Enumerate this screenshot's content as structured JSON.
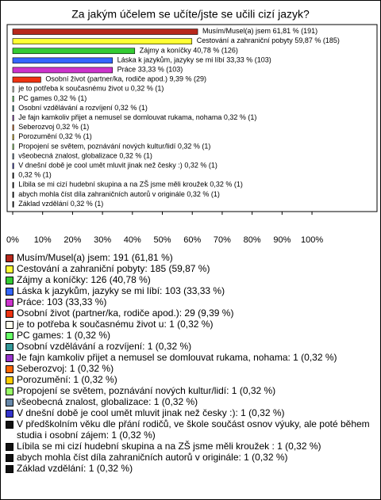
{
  "chart_data": {
    "type": "bar",
    "orientation": "horizontal",
    "title": "Za jakým účelem se učíte/jste se učili cizí jazyk?",
    "categories": [
      "Musím/Musel(a) jsem",
      "Cestování a zahraniční pobyty",
      "Zájmy a koníčky",
      "Láska k jazykům, jazyky se mi líbí",
      "Práce",
      "Osobní život (partner/ka, rodiče apod.)",
      "je to potřeba k současnému život u",
      "PC games",
      "Osobní vzdělávání a rozvíjení",
      "Je fajn kamkoliv přijet a nemusel se domlouvat rukama, nohama",
      "Seberozvoj",
      "Porozumění",
      "Propojení se světem, poznávání nových kultur/lidí",
      "všeobecná znalost, globalizace",
      "V dnešní době je cool umět mluvit jinak než česky :)",
      null,
      "Líbila se mi cizí hudební skupina a na ZŠ jsme měli kroužek",
      "abych mohla číst díla zahraničních autorů v originále",
      "Základ vzdělání"
    ],
    "values": [
      61.81,
      59.87,
      40.78,
      33.33,
      33.33,
      9.39,
      0.32,
      0.32,
      0.32,
      0.32,
      0.32,
      0.32,
      0.32,
      0.32,
      0.32,
      0.32,
      0.32,
      0.32,
      0.32
    ],
    "value_labels": [
      "61,81 % (191)",
      "59,87 % (185)",
      "40,78 % (126)",
      "33,33 % (103)",
      "33,33 % (103)",
      "9,39 % (29)",
      "0,32 % (1)",
      "0,32 % (1)",
      "0,32 % (1)",
      "0,32 % (1)",
      "0,32 % (1)",
      "0,32 % (1)",
      "0,32 % (1)",
      "0,32 % (1)",
      "0,32 % (1)",
      "0,32 % (1)",
      "0,32 % (1)",
      "0,32 % (1)",
      "0,32 % (1)"
    ],
    "colors": [
      "#b8281c",
      "#ffff33",
      "#33cc33",
      "#3366ff",
      "#cc33cc",
      "#ee3311",
      "#ffffee",
      "#66ff66",
      "#339999",
      "#9933cc",
      "#ff6600",
      "#ffcc00",
      "#99ff66",
      "#6688aa",
      "#3333cc",
      "#111111",
      "#111111",
      "#111111",
      "#111111"
    ],
    "legend": [
      "Musím/Musel(a) jsem: 191 (61,81 %)",
      "Cestování a zahraniční pobyty: 185 (59,87 %)",
      "Zájmy a koníčky: 126 (40,78 %)",
      "Láska k jazykům, jazyky se mi líbí: 103 (33,33 %)",
      "Práce: 103 (33,33 %)",
      "Osobní život (partner/ka, rodiče apod.): 29 (9,39 %)",
      "je to potřeba k současnému život u: 1 (0,32 %)",
      "PC games: 1 (0,32 %)",
      "Osobní vzdělávání a rozvíjení: 1 (0,32 %)",
      "Je fajn kamkoliv přijet a nemusel se domlouvat rukama, nohama: 1 (0,32 %)",
      "Seberozvoj: 1 (0,32 %)",
      "Porozumění: 1 (0,32 %)",
      "Propojení se světem, poznávání nových kultur/lidí: 1 (0,32 %)",
      "všeobecná znalost, globalizace: 1 (0,32 %)",
      "V dnešní době je cool umět mluvit jinak než česky :): 1 (0,32 %)",
      "V předškolním věku dle přání rodičů, ve škole součást osnov výuky, ale poté během studia i osobní zájem: 1 (0,32 %)",
      "Líbila se mi cizí hudební skupina a na ZŠ jsme měli kroužek : 1 (0,32 %)",
      "abych mohla číst díla zahraničních autorů v originále: 1 (0,32 %)",
      "Základ vzdělání: 1 (0,32 %)"
    ],
    "xlim": [
      0,
      122
    ],
    "xticks": [
      {
        "value": 0,
        "label": "0%"
      },
      {
        "value": 10,
        "label": "10%"
      },
      {
        "value": 20,
        "label": "20%"
      },
      {
        "value": 30,
        "label": "30%"
      },
      {
        "value": 40,
        "label": "40%"
      },
      {
        "value": 50,
        "label": "50%"
      },
      {
        "value": 60,
        "label": "60%"
      },
      {
        "value": 70,
        "label": "70%"
      },
      {
        "value": 80,
        "label": "80%"
      },
      {
        "value": 90,
        "label": "90%"
      },
      {
        "value": 100,
        "label": "100%"
      }
    ]
  }
}
